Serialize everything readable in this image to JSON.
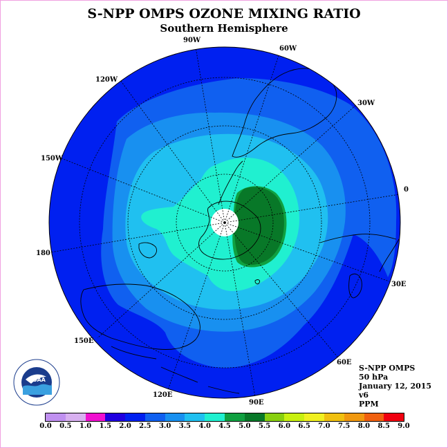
{
  "header": {
    "title": "S-NPP OMPS OZONE MIXING RATIO",
    "subtitle": "Southern Hemisphere"
  },
  "longitude_labels": {
    "lon_90w": "90W",
    "lon_60w": "60W",
    "lon_120w": "120W",
    "lon_30w": "30W",
    "lon_150w": "150W",
    "lon_0": "0",
    "lon_180": "180",
    "lon_30e": "30E",
    "lon_150e": "150E",
    "lon_60e": "60E",
    "lon_120e": "120E",
    "lon_90e": "90E"
  },
  "info": {
    "instrument": "S-NPP OMPS",
    "level": "50 hPa",
    "date": "January 12, 2015",
    "version": "v6",
    "units": "PPM"
  },
  "logo": {
    "text": "NOAA",
    "ring_text": "NATIONAL OCEANIC AND ATMOSPHERIC ADMINISTRATION · U.S. DEPARTMENT OF COMMERCE"
  },
  "colorbar": {
    "labels": [
      "0.0",
      "0.5",
      "1.0",
      "1.5",
      "2.0",
      "2.5",
      "3.0",
      "3.5",
      "4.0",
      "4.5",
      "5.0",
      "5.5",
      "6.0",
      "6.5",
      "7.0",
      "7.5",
      "8.0",
      "8.5",
      "9.0"
    ],
    "colors": [
      "#c090f0",
      "#d8b0f0",
      "#f010d0",
      "#2000e0",
      "#0020f0",
      "#1060f0",
      "#1890f0",
      "#20c0f0",
      "#20f0d0",
      "#10a040",
      "#087828",
      "#88d010",
      "#c8f010",
      "#f0f020",
      "#f0c010",
      "#f09810",
      "#f06010",
      "#f00010",
      "#806040"
    ]
  },
  "map_colors": {
    "c_2_0": "#0020f0",
    "c_2_5": "#1060f0",
    "c_3_0": "#1890f0",
    "c_3_5": "#20c0f0",
    "c_4_0": "#20f0d0",
    "c_4_5": "#10a040",
    "c_5_0": "#087828"
  }
}
